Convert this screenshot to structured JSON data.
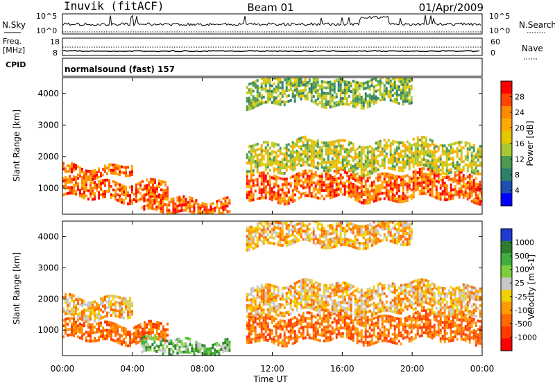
{
  "header": {
    "station": "Inuvik (fitACF)",
    "beam": "Beam 01",
    "date": "01/Apr/2009"
  },
  "strips": {
    "nsky_label": "N.Sky",
    "nsearch_label": "N.Search",
    "log_ticks": [
      "10^5",
      "10^0"
    ],
    "freq_label": "Freq.",
    "freq_unit": "[MHz]",
    "freq_ticks": [
      "18",
      "8"
    ],
    "nave_label": "Nave",
    "nave_ticks": [
      "60",
      "0"
    ],
    "cpid_label": "CPID",
    "cpid_text": "normalsound (fast) 157"
  },
  "chart_data": [
    {
      "type": "heatmap",
      "title": "",
      "xlabel": "",
      "ylabel": "Slant Range [km]",
      "x_ticks": [
        "00:00",
        "04:00",
        "08:00",
        "12:00",
        "16:00",
        "20:00",
        "00:00"
      ],
      "xlim_hours": [
        0,
        24
      ],
      "ylim": [
        180,
        4500
      ],
      "y_ticks": [
        1000,
        2000,
        3000,
        4000
      ],
      "colorbar": {
        "label": "Power [dB]",
        "ticks": [
          "28",
          "24",
          "20",
          "16",
          "12",
          "8",
          "4"
        ],
        "colors": [
          "#ff0000",
          "#ff4400",
          "#ff8800",
          "#ffaa00",
          "#e6c800",
          "#a8c832",
          "#4c9a52",
          "#2d7f6a",
          "#1e4fb0",
          "#0000ff"
        ]
      },
      "echo_bands": [
        {
          "start_h": 0,
          "end_h": 6,
          "range_km": [
            650,
            1250
          ],
          "level": "high"
        },
        {
          "start_h": 4.5,
          "end_h": 9.5,
          "range_km": [
            250,
            700
          ],
          "level": "high"
        },
        {
          "start_h": 0,
          "end_h": 4,
          "range_km": [
            1400,
            1750
          ],
          "level": "high"
        },
        {
          "start_h": 10.5,
          "end_h": 24,
          "range_km": [
            650,
            1500
          ],
          "level": "high"
        },
        {
          "start_h": 10.5,
          "end_h": 24,
          "range_km": [
            1600,
            2500
          ],
          "level": "medium"
        },
        {
          "start_h": 10.5,
          "end_h": 20,
          "range_km": [
            3700,
            4500
          ],
          "level": "low"
        }
      ]
    },
    {
      "type": "heatmap",
      "title": "",
      "xlabel": "Time UT",
      "ylabel": "Slant Range [km]",
      "x_ticks": [
        "00:00",
        "04:00",
        "08:00",
        "12:00",
        "16:00",
        "20:00",
        "00:00"
      ],
      "xlim_hours": [
        0,
        24
      ],
      "ylim": [
        180,
        4500
      ],
      "y_ticks": [
        1000,
        2000,
        3000,
        4000
      ],
      "colorbar": {
        "label": "Velocity [m s-1]",
        "ticks": [
          "1000",
          "500",
          "100",
          "25",
          "-25",
          "-100",
          "-500",
          "-1000"
        ],
        "colors": [
          "#1f3bd1",
          "#2e7d2e",
          "#3fae3f",
          "#7ccf3a",
          "#c8c8c8",
          "#f0d200",
          "#ff9a00",
          "#ff6a00",
          "#ff3a00",
          "#ff0000"
        ]
      },
      "echo_bands": [
        {
          "start_h": 0,
          "end_h": 6,
          "range_km": [
            650,
            1250
          ],
          "level": "away"
        },
        {
          "start_h": 4.5,
          "end_h": 9.5,
          "range_km": [
            250,
            700
          ],
          "level": "toward"
        },
        {
          "start_h": 0,
          "end_h": 4,
          "range_km": [
            1400,
            2100
          ],
          "level": "low"
        },
        {
          "start_h": 10.5,
          "end_h": 24,
          "range_km": [
            650,
            1500
          ],
          "level": "away"
        },
        {
          "start_h": 10.5,
          "end_h": 24,
          "range_km": [
            1600,
            2500
          ],
          "level": "low"
        },
        {
          "start_h": 10.5,
          "end_h": 20,
          "range_km": [
            3700,
            4500
          ],
          "level": "low"
        }
      ]
    }
  ]
}
